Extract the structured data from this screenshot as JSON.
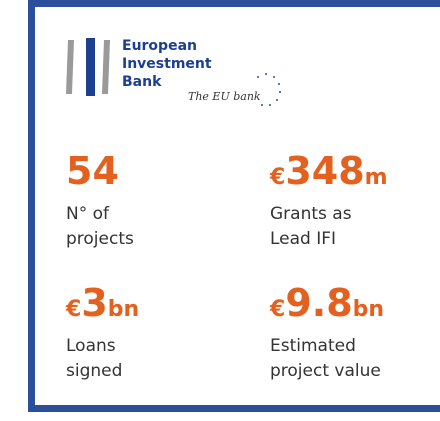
{
  "logo": {
    "lines": [
      "European",
      "Investment",
      "Bank"
    ],
    "tagline": "The EU bank"
  },
  "stats": [
    {
      "prefix": "",
      "number": "54",
      "suffix": "",
      "label": [
        "N° of",
        "projects"
      ]
    },
    {
      "prefix": "€",
      "number": "348",
      "suffix": "m",
      "label": [
        "Grants as",
        "Lead IFI"
      ]
    },
    {
      "prefix": "€",
      "number": "3",
      "suffix": "bn",
      "label": [
        "Loans",
        "signed"
      ]
    },
    {
      "prefix": "€",
      "number": "9.8",
      "suffix": "bn",
      "label": [
        "Estimated",
        "project value"
      ]
    }
  ]
}
